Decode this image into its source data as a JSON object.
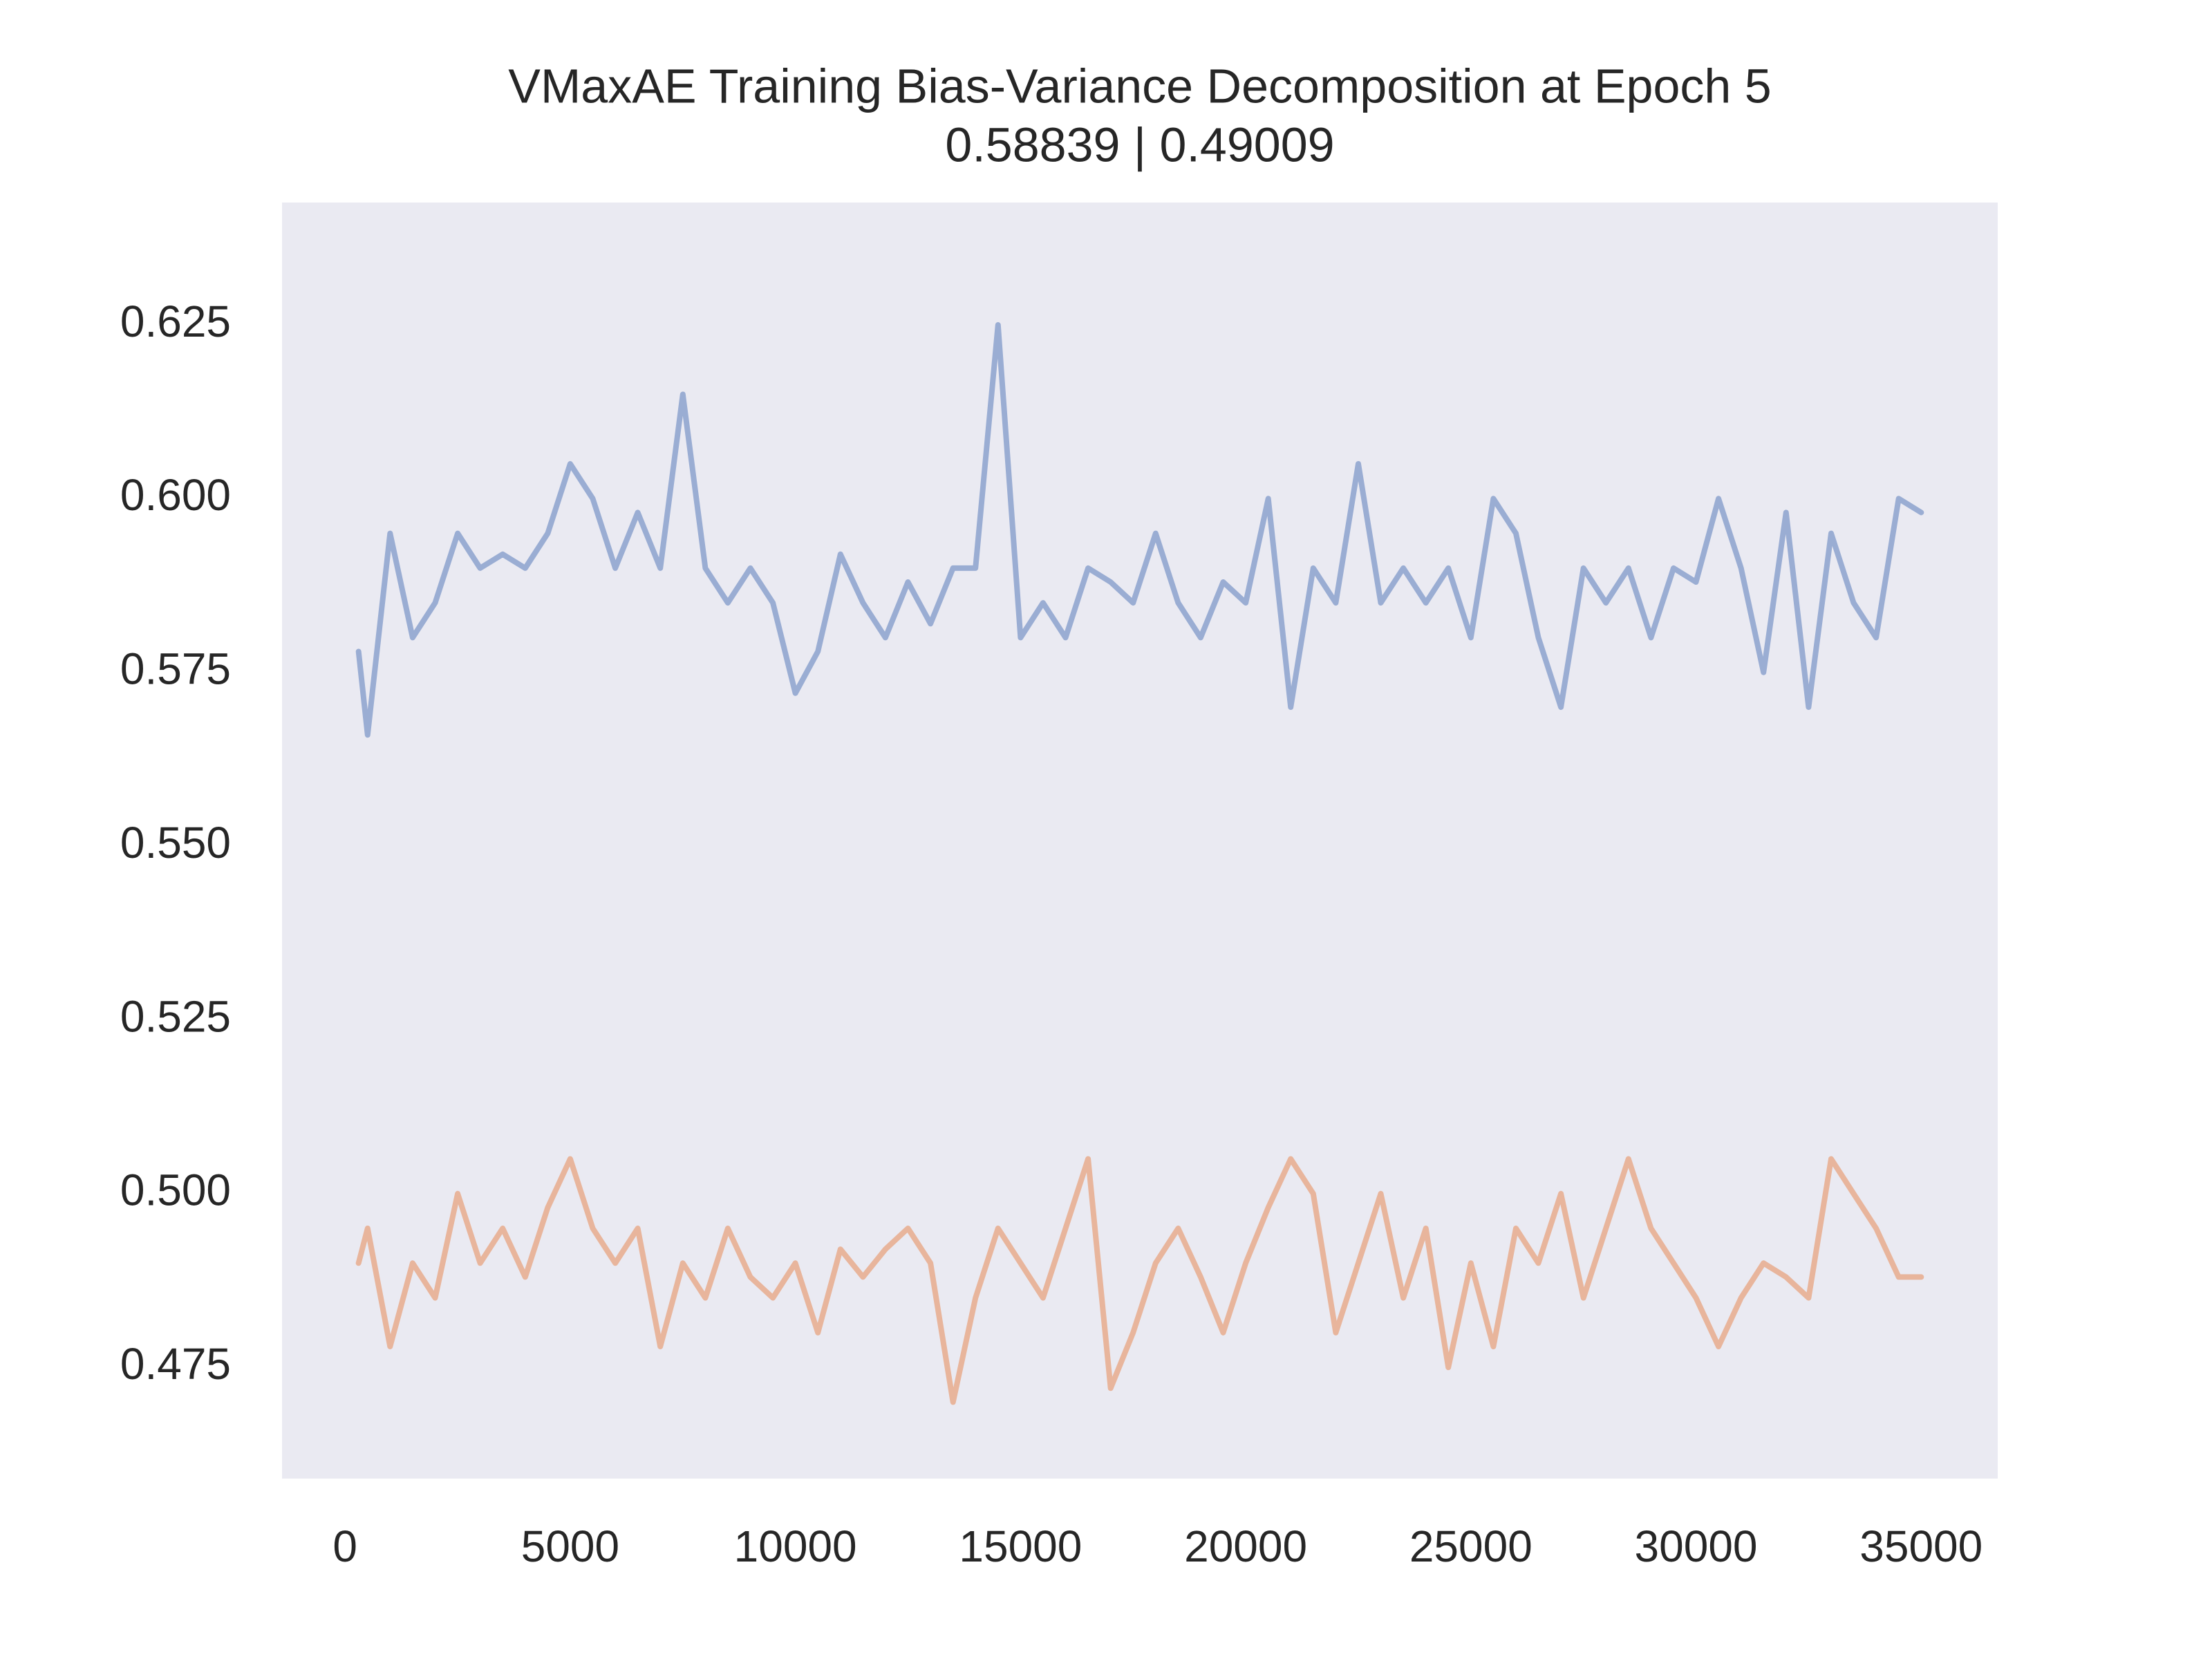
{
  "chart_data": {
    "type": "line",
    "title": "VMaxAE Training Bias-Variance Decomposition at Epoch 5",
    "subtitle": "0.58839 | 0.49009",
    "x": [
      300,
      500,
      1000,
      1500,
      2000,
      2500,
      3000,
      3500,
      4000,
      4500,
      5000,
      5500,
      6000,
      6500,
      7000,
      7500,
      8000,
      8500,
      9000,
      9500,
      10000,
      10500,
      11000,
      11500,
      12000,
      12500,
      13000,
      13500,
      14000,
      14500,
      15000,
      15500,
      16000,
      16500,
      17000,
      17500,
      18000,
      18500,
      19000,
      19500,
      20000,
      20500,
      21000,
      21500,
      22000,
      22500,
      23000,
      23500,
      24000,
      24500,
      25000,
      25500,
      26000,
      26500,
      27000,
      27500,
      28000,
      28500,
      29000,
      29500,
      30000,
      30500,
      31000,
      31500,
      32000,
      32500,
      33000,
      33500,
      34000,
      34500,
      35000
    ],
    "series": [
      {
        "color": "#9aadd3",
        "values": [
          0.578,
          0.566,
          0.595,
          0.58,
          0.585,
          0.595,
          0.59,
          0.592,
          0.59,
          0.595,
          0.605,
          0.6,
          0.59,
          0.598,
          0.59,
          0.615,
          0.59,
          0.585,
          0.59,
          0.585,
          0.572,
          0.578,
          0.592,
          0.585,
          0.58,
          0.588,
          0.582,
          0.59,
          0.59,
          0.625,
          0.58,
          0.585,
          0.58,
          0.59,
          0.588,
          0.585,
          0.595,
          0.585,
          0.58,
          0.588,
          0.585,
          0.6,
          0.57,
          0.59,
          0.585,
          0.605,
          0.585,
          0.59,
          0.585,
          0.59,
          0.58,
          0.6,
          0.595,
          0.58,
          0.57,
          0.59,
          0.585,
          0.59,
          0.58,
          0.59,
          0.588,
          0.6,
          0.59,
          0.575,
          0.598,
          0.57,
          0.595,
          0.585,
          0.58,
          0.6,
          0.598
        ]
      },
      {
        "color": "#e8b59c",
        "values": [
          0.49,
          0.495,
          0.478,
          0.49,
          0.485,
          0.5,
          0.49,
          0.495,
          0.488,
          0.498,
          0.505,
          0.495,
          0.49,
          0.495,
          0.478,
          0.49,
          0.485,
          0.495,
          0.488,
          0.485,
          0.49,
          0.48,
          0.492,
          0.488,
          0.492,
          0.495,
          0.49,
          0.47,
          0.485,
          0.495,
          0.49,
          0.485,
          0.495,
          0.505,
          0.472,
          0.48,
          0.49,
          0.495,
          0.488,
          0.48,
          0.49,
          0.498,
          0.505,
          0.5,
          0.48,
          0.49,
          0.5,
          0.485,
          0.495,
          0.475,
          0.49,
          0.478,
          0.495,
          0.49,
          0.5,
          0.485,
          0.495,
          0.505,
          0.495,
          0.49,
          0.485,
          0.478,
          0.485,
          0.49,
          0.488,
          0.485,
          0.505,
          0.5,
          0.495,
          0.488,
          0.488
        ]
      }
    ],
    "xlim": [
      -1400,
      36700
    ],
    "ylim": [
      0.459,
      0.6426
    ],
    "xticks": [
      0,
      5000,
      10000,
      15000,
      20000,
      25000,
      30000,
      35000
    ],
    "yticks": [
      0.475,
      {
        "value": 0.5,
        "label": "0.500"
      },
      0.525,
      {
        "value": 0.55,
        "label": "0.550"
      },
      0.575,
      {
        "value": 0.6,
        "label": "0.600"
      },
      0.625
    ],
    "grid": false
  }
}
